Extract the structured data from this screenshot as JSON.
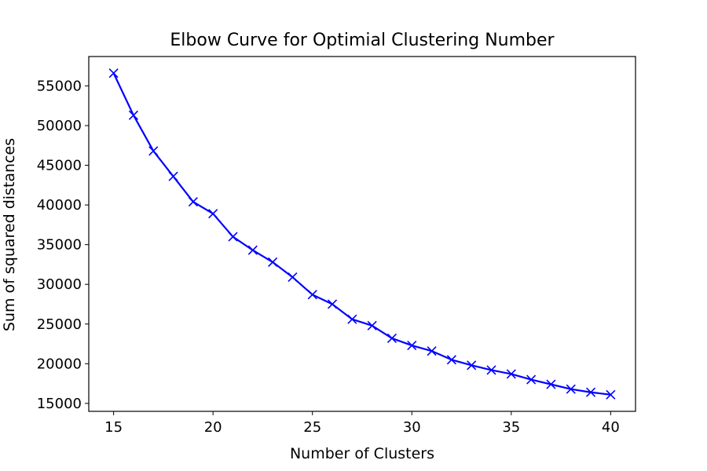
{
  "chart_data": {
    "type": "line",
    "title": "Elbow Curve for Optimial Clustering Number",
    "xlabel": "Number of Clusters",
    "ylabel": "Sum of squared distances",
    "xlim": [
      13.75,
      41.25
    ],
    "ylim": [
      14000,
      58700
    ],
    "x_ticks": [
      15,
      20,
      25,
      30,
      35,
      40
    ],
    "y_ticks": [
      15000,
      20000,
      25000,
      30000,
      35000,
      40000,
      45000,
      50000,
      55000
    ],
    "grid": false,
    "series": [
      {
        "color": "#0000ff",
        "marker": "x",
        "x": [
          15,
          16,
          17,
          18,
          19,
          20,
          21,
          22,
          23,
          24,
          25,
          26,
          27,
          28,
          29,
          30,
          31,
          32,
          33,
          34,
          35,
          36,
          37,
          38,
          39,
          40
        ],
        "values": [
          56600,
          51300,
          46800,
          43600,
          40400,
          38900,
          36000,
          34300,
          32800,
          30900,
          28700,
          27500,
          25600,
          24800,
          23200,
          22300,
          21600,
          20500,
          19800,
          19200,
          18700,
          18000,
          17400,
          16800,
          16400,
          16100
        ]
      }
    ]
  }
}
